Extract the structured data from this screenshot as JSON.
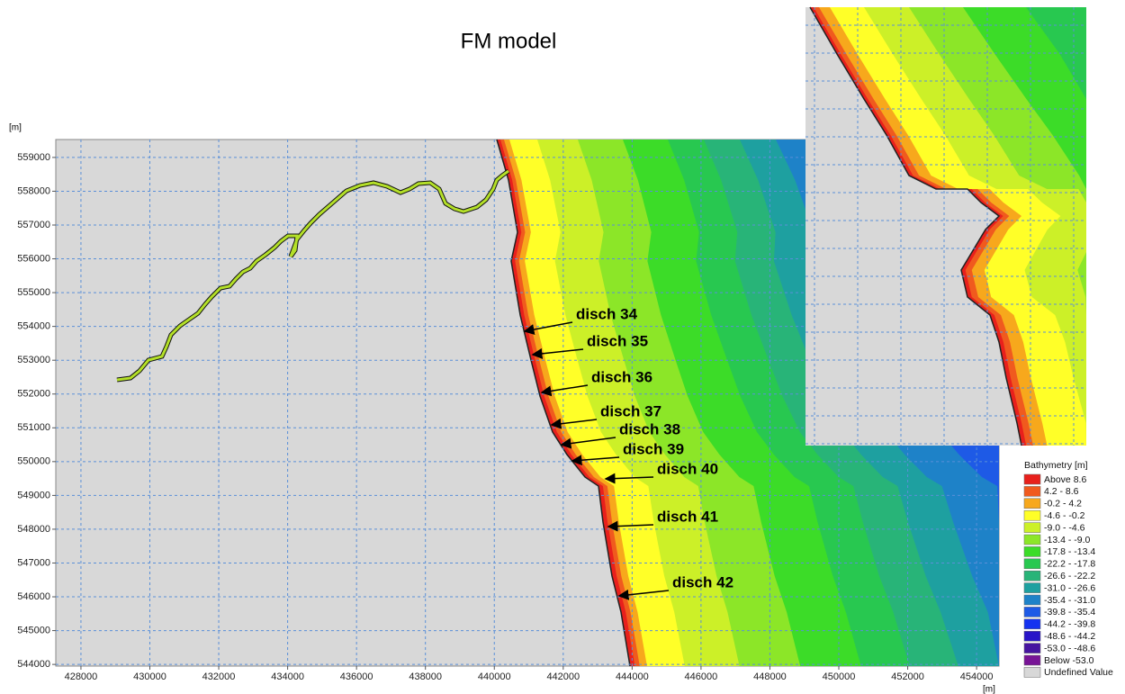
{
  "title": "FM model",
  "axes": {
    "x_unit": "[m]",
    "y_unit": "[m]",
    "xlim": [
      427270,
      454650
    ],
    "ylim": [
      543950,
      559530
    ],
    "xticks": [
      428000,
      430000,
      432000,
      434000,
      436000,
      438000,
      440000,
      442000,
      444000,
      446000,
      448000,
      450000,
      452000,
      454000
    ],
    "yticks": [
      544000,
      545000,
      546000,
      547000,
      548000,
      549000,
      550000,
      551000,
      552000,
      553000,
      554000,
      555000,
      556000,
      557000,
      558000,
      559000
    ]
  },
  "annotations": [
    "disch 34",
    "disch 35",
    "disch 36",
    "disch 37",
    "disch 38",
    "disch 39",
    "disch 40",
    "disch 41",
    "disch 42"
  ],
  "legend": {
    "title": "Bathymetry [m]",
    "items": [
      {
        "label": "Above 8.6",
        "color": "#e8201c"
      },
      {
        "label": "4.2 - 8.6",
        "color": "#f05a1e"
      },
      {
        "label": "-0.2 - 4.2",
        "color": "#f7a81c"
      },
      {
        "label": "-4.6 - -0.2",
        "color": "#ffff28"
      },
      {
        "label": "-9.0 - -4.6",
        "color": "#ccf028"
      },
      {
        "label": "-13.4 - -9.0",
        "color": "#8ce628"
      },
      {
        "label": "-17.8 - -13.4",
        "color": "#3cdc28"
      },
      {
        "label": "-22.2 - -17.8",
        "color": "#28c850"
      },
      {
        "label": "-26.6 - -22.2",
        "color": "#28b478"
      },
      {
        "label": "-31.0 - -26.6",
        "color": "#1ea0a0"
      },
      {
        "label": "-35.4 - -31.0",
        "color": "#1e82c8"
      },
      {
        "label": "-39.8 - -35.4",
        "color": "#1e5ae6"
      },
      {
        "label": "-44.2 - -39.8",
        "color": "#1432f0"
      },
      {
        "label": "-48.6 - -44.2",
        "color": "#2814c8"
      },
      {
        "label": "-53.0 - -48.6",
        "color": "#4614a0"
      },
      {
        "label": "Below -53.0",
        "color": "#781496"
      },
      {
        "label": "Undefined Value",
        "color": "#d8d8d8"
      }
    ]
  }
}
